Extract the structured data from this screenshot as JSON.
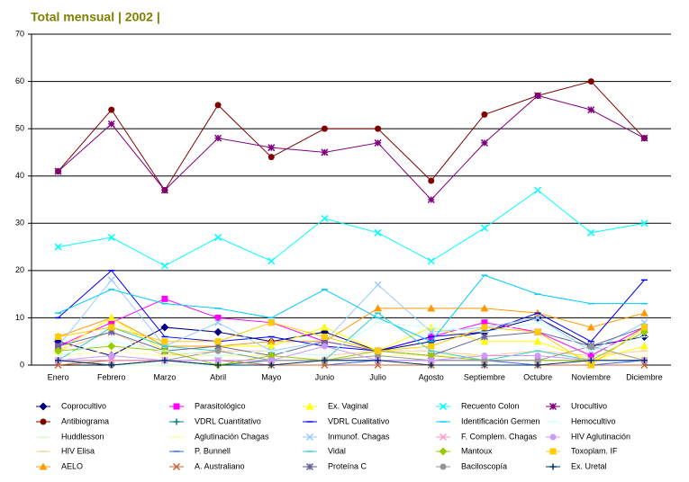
{
  "chart_data": {
    "type": "line",
    "title": "Total mensual | 2002 |",
    "categories": [
      "Enero",
      "Febrero",
      "Marzo",
      "Abril",
      "Mayo",
      "Junio",
      "Julio",
      "Agosto",
      "Septiembre",
      "Octubre",
      "Noviembre",
      "Diciembre"
    ],
    "ylim": [
      0,
      70
    ],
    "yticks": [
      0,
      10,
      20,
      30,
      40,
      50,
      60,
      70
    ],
    "grid": true,
    "series": [
      {
        "name": "Coprocultivo",
        "color": "#000080",
        "marker": "diamond",
        "values": [
          5,
          2,
          8,
          7,
          5,
          7,
          3,
          5,
          7,
          10,
          4,
          6
        ]
      },
      {
        "name": "Antibiograma",
        "color": "#800000",
        "marker": "circle",
        "values": [
          41,
          54,
          37,
          55,
          44,
          50,
          50,
          39,
          53,
          57,
          60,
          48
        ]
      },
      {
        "name": "Huddlesson",
        "color": "#ccffcc",
        "marker": "dash",
        "values": [
          1,
          0,
          0,
          0,
          0,
          0,
          0,
          0,
          0,
          0,
          0,
          1
        ]
      },
      {
        "name": "HIV Elisa",
        "color": "#ffcc99",
        "marker": "dash",
        "values": [
          3,
          7,
          2,
          3,
          3,
          2,
          3,
          3,
          2,
          3,
          2,
          3
        ]
      },
      {
        "name": "AELO",
        "color": "#ff9900",
        "marker": "triangle",
        "values": [
          6,
          10,
          4,
          4,
          5,
          5,
          12,
          12,
          12,
          11,
          8,
          11
        ]
      },
      {
        "name": "Parasitológico",
        "color": "#ff00ff",
        "marker": "square",
        "values": [
          4,
          9,
          14,
          10,
          9,
          5,
          3,
          6,
          9,
          7,
          2,
          8
        ]
      },
      {
        "name": "VDRL Cuantitativo",
        "color": "#008080",
        "marker": "plus",
        "values": [
          1,
          1,
          1,
          0,
          1,
          1,
          1,
          1,
          1,
          1,
          1,
          1
        ]
      },
      {
        "name": "Aglutinación Chagas",
        "color": "#ffff99",
        "marker": "dash",
        "values": [
          2,
          3,
          2,
          2,
          2,
          1,
          2,
          2,
          2,
          2,
          1,
          2
        ]
      },
      {
        "name": "P. Bunnell",
        "color": "#3366ff",
        "marker": "dash",
        "values": [
          1,
          0,
          1,
          0,
          0,
          0,
          1,
          1,
          1,
          0,
          0,
          1
        ]
      },
      {
        "name": "A. Australiano",
        "color": "#cc6633",
        "marker": "x",
        "values": [
          0,
          1,
          1,
          1,
          0,
          0,
          0,
          0,
          0,
          0,
          0,
          0
        ]
      },
      {
        "name": "Ex. Vaginal",
        "color": "#ffff00",
        "marker": "triangle",
        "values": [
          3,
          10,
          3,
          4,
          4,
          8,
          3,
          8,
          5,
          5,
          1,
          4
        ]
      },
      {
        "name": "VDRL Cualitativo",
        "color": "#0000ff",
        "marker": "dash",
        "values": [
          10,
          20,
          6,
          5,
          6,
          4,
          3,
          6,
          7,
          11,
          5,
          18
        ]
      },
      {
        "name": "Inmunof. Chagas",
        "color": "#99ccff",
        "marker": "x",
        "values": [
          4,
          18,
          4,
          9,
          3,
          5,
          17,
          7,
          8,
          10,
          3,
          9
        ]
      },
      {
        "name": "Vidal",
        "color": "#33cccc",
        "marker": "dash",
        "values": [
          1,
          8,
          4,
          3,
          1,
          1,
          11,
          3,
          1,
          3,
          1,
          1
        ]
      },
      {
        "name": "Proteína C",
        "color": "#666699",
        "marker": "asterisk",
        "values": [
          4,
          7,
          3,
          4,
          2,
          5,
          3,
          2,
          6,
          7,
          4,
          8
        ]
      },
      {
        "name": "Recuento Colon",
        "color": "#00ffff",
        "marker": "x",
        "values": [
          25,
          27,
          21,
          27,
          22,
          31,
          28,
          22,
          29,
          37,
          28,
          30
        ]
      },
      {
        "name": "Identificación Germen",
        "color": "#00ccff",
        "marker": "dash",
        "values": [
          11,
          16,
          13,
          12,
          10,
          16,
          10,
          5,
          19,
          15,
          13,
          13
        ]
      },
      {
        "name": "F. Complem. Chagas",
        "color": "#ff99cc",
        "marker": "x",
        "values": [
          1,
          1,
          1,
          1,
          1,
          1,
          1,
          1,
          1,
          1,
          1,
          1
        ]
      },
      {
        "name": "Mantoux",
        "color": "#99cc00",
        "marker": "diamond",
        "values": [
          3,
          4,
          3,
          0,
          2,
          1,
          3,
          2,
          1,
          1,
          1,
          7
        ]
      },
      {
        "name": "Baciloscopía",
        "color": "#969696",
        "marker": "circle",
        "values": [
          1,
          0,
          1,
          3,
          1,
          1,
          2,
          1,
          1,
          1,
          4,
          1
        ]
      },
      {
        "name": "Urocultivo",
        "color": "#800080",
        "marker": "asterisk",
        "values": [
          41,
          51,
          37,
          48,
          46,
          45,
          47,
          35,
          47,
          57,
          54,
          48
        ]
      },
      {
        "name": "Hemocultivo",
        "color": "#ccffff",
        "marker": "dash",
        "values": [
          2,
          5,
          3,
          2,
          3,
          2,
          9,
          8,
          7,
          9,
          3,
          6
        ]
      },
      {
        "name": "HIV Aglutinación",
        "color": "#cc99ff",
        "marker": "circle",
        "values": [
          1,
          2,
          1,
          1,
          1,
          4,
          1,
          1,
          2,
          2,
          1,
          1
        ]
      },
      {
        "name": "Toxoplam. IF",
        "color": "#ffcc00",
        "marker": "square",
        "values": [
          6,
          8,
          5,
          5,
          9,
          6,
          3,
          4,
          8,
          7,
          0,
          8
        ]
      },
      {
        "name": "Ex. Uretal",
        "color": "#003366",
        "marker": "plus",
        "values": [
          1,
          0,
          1,
          0,
          0,
          1,
          1,
          0,
          0,
          0,
          1,
          1
        ]
      }
    ]
  }
}
